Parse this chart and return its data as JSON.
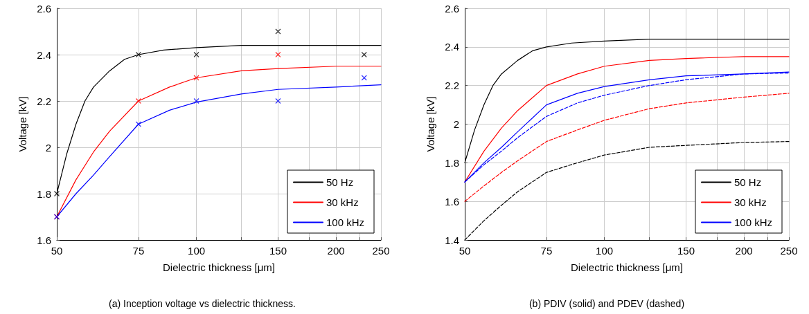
{
  "chart_data": [
    {
      "type": "line",
      "xlabel": "Dielectric thickness [μm]",
      "ylabel": "Voltage [kV]",
      "log": "x",
      "xlim": [
        50,
        250
      ],
      "xticks": [
        50,
        75,
        100,
        {
          "value": 125,
          "label": null
        },
        150,
        {
          "value": 175,
          "label": null
        },
        200,
        {
          "value": 225,
          "label": null
        },
        250
      ],
      "ylim": [
        1.6,
        2.6
      ],
      "yticks": [
        1.6,
        1.8,
        2,
        2.2,
        2.4,
        2.6
      ],
      "grid": true,
      "legend": "bottom right",
      "annotations": [
        "(a) Inception voltage vs dielectric thickness."
      ],
      "series": [
        {
          "name": "50 Hz",
          "color": "#000000",
          "marker": "none",
          "line_style": "solid",
          "x": [
            50,
            52.5,
            55,
            57.5,
            60,
            65,
            70,
            75,
            85,
            100,
            125,
            150,
            250
          ],
          "values": [
            1.8,
            1.97,
            2.1,
            2.2,
            2.26,
            2.33,
            2.38,
            2.4,
            2.42,
            2.43,
            2.44,
            2.44,
            2.44
          ]
        },
        {
          "name": "30 kHz",
          "color": "#ff0000",
          "marker": "none",
          "line_style": "solid",
          "x": [
            50,
            55,
            60,
            65,
            75,
            87.5,
            100,
            125,
            150,
            200,
            250
          ],
          "values": [
            1.7,
            1.86,
            1.98,
            2.07,
            2.2,
            2.26,
            2.3,
            2.33,
            2.34,
            2.35,
            2.35
          ]
        },
        {
          "name": "100 kHz",
          "color": "#0000ff",
          "marker": "none",
          "line_style": "solid",
          "x": [
            50,
            55,
            60,
            65,
            75,
            87.5,
            100,
            125,
            150,
            200,
            250
          ],
          "values": [
            1.7,
            1.8,
            1.88,
            1.96,
            2.1,
            2.16,
            2.195,
            2.23,
            2.25,
            2.26,
            2.27
          ]
        },
        {
          "type": "scatter",
          "color": "#000000",
          "marker": "cross",
          "x": [
            50,
            75,
            100,
            150,
            230
          ],
          "values": [
            1.8,
            2.4,
            2.4,
            2.5,
            2.4
          ]
        },
        {
          "type": "scatter",
          "color": "#ff0000",
          "marker": "cross",
          "x": [
            50,
            75,
            100,
            150
          ],
          "values": [
            1.7,
            2.2,
            2.3,
            2.4
          ]
        },
        {
          "type": "scatter",
          "color": "#0000ff",
          "marker": "cross",
          "x": [
            50,
            75,
            100,
            150,
            230
          ],
          "values": [
            1.7,
            2.1,
            2.2,
            2.2,
            2.3
          ]
        }
      ]
    },
    {
      "type": "line",
      "xlabel": "Dielectric thickness [μm]",
      "ylabel": "Voltage [kV]",
      "log": "x",
      "xlim": [
        50,
        250
      ],
      "xticks": [
        50,
        75,
        100,
        {
          "value": 125,
          "label": null
        },
        150,
        {
          "value": 175,
          "label": null
        },
        200,
        {
          "value": 225,
          "label": null
        },
        250
      ],
      "ylim": [
        1.4,
        2.6
      ],
      "yticks": [
        1.4,
        1.6,
        1.8,
        2,
        2.2,
        2.4,
        2.6
      ],
      "grid": true,
      "legend": "bottom right",
      "annotations": [
        "(b) PDIV (solid) and PDEV (dashed)"
      ],
      "series": [
        {
          "name": "50 Hz",
          "color": "#000000",
          "marker": "none",
          "line_style": "solid",
          "x": [
            50,
            52.5,
            55,
            57.5,
            60,
            65,
            70,
            75,
            85,
            100,
            125,
            150,
            250
          ],
          "values": [
            1.8,
            1.97,
            2.1,
            2.2,
            2.26,
            2.33,
            2.38,
            2.4,
            2.42,
            2.43,
            2.44,
            2.44,
            2.44
          ]
        },
        {
          "name": "30 kHz",
          "color": "#ff0000",
          "marker": "none",
          "line_style": "solid",
          "x": [
            50,
            55,
            60,
            65,
            75,
            87.5,
            100,
            125,
            150,
            200,
            250
          ],
          "values": [
            1.7,
            1.86,
            1.98,
            2.07,
            2.2,
            2.26,
            2.3,
            2.33,
            2.34,
            2.35,
            2.35
          ]
        },
        {
          "name": "100 kHz",
          "color": "#0000ff",
          "marker": "none",
          "line_style": "solid",
          "x": [
            50,
            55,
            60,
            65,
            75,
            87.5,
            100,
            125,
            150,
            200,
            250
          ],
          "values": [
            1.7,
            1.8,
            1.88,
            1.96,
            2.1,
            2.16,
            2.195,
            2.23,
            2.25,
            2.26,
            2.27
          ]
        },
        {
          "color": "#0000ff",
          "marker": "none",
          "line_style": "dashed",
          "x": [
            50,
            55,
            60,
            65,
            75,
            87.5,
            100,
            125,
            150,
            200,
            250
          ],
          "values": [
            1.7,
            1.79,
            1.86,
            1.93,
            2.04,
            2.11,
            2.15,
            2.2,
            2.23,
            2.26,
            2.265
          ]
        },
        {
          "color": "#ff0000",
          "marker": "none",
          "line_style": "dashed",
          "x": [
            50,
            55,
            60,
            65,
            75,
            87.5,
            100,
            125,
            150,
            200,
            250
          ],
          "values": [
            1.6,
            1.68,
            1.75,
            1.81,
            1.91,
            1.97,
            2.02,
            2.08,
            2.11,
            2.14,
            2.16
          ]
        },
        {
          "color": "#000000",
          "marker": "none",
          "line_style": "dashed",
          "x": [
            50,
            55,
            60,
            65,
            75,
            87.5,
            100,
            125,
            150,
            200,
            250
          ],
          "values": [
            1.4,
            1.5,
            1.58,
            1.65,
            1.75,
            1.8,
            1.84,
            1.88,
            1.89,
            1.905,
            1.91
          ]
        }
      ]
    }
  ]
}
